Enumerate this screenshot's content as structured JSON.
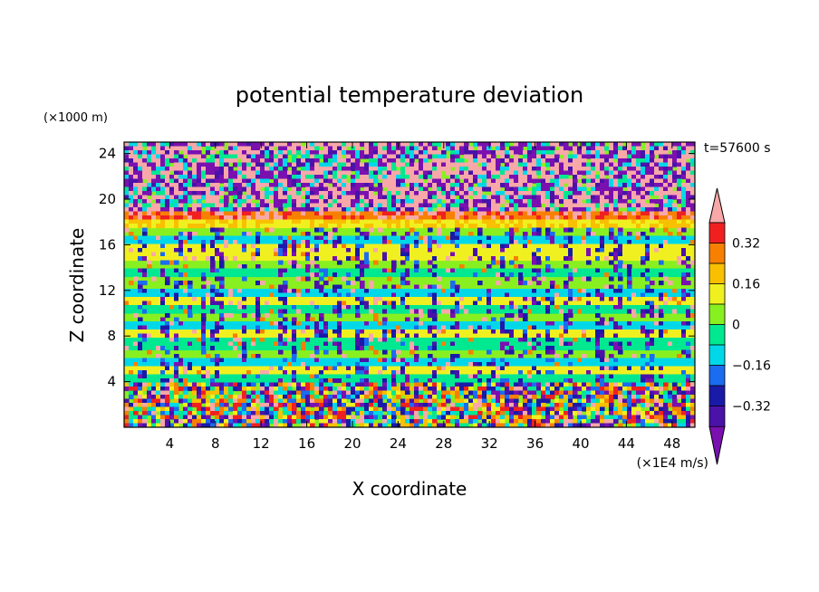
{
  "chart_data": {
    "type": "heatmap",
    "title": "potential temperature deviation",
    "time_label": "t=57600 s",
    "xlabel": "X coordinate",
    "ylabel": "Z coordinate",
    "x_unit": "(×1E4 m/s)",
    "y_unit": "(×1000 m)",
    "xlim": [
      0,
      50
    ],
    "ylim": [
      0,
      25
    ],
    "x_ticks": [
      4,
      8,
      12,
      16,
      20,
      24,
      28,
      32,
      36,
      40,
      44,
      48
    ],
    "y_ticks": [
      4,
      8,
      12,
      16,
      20,
      24
    ],
    "colorbar": {
      "levels": [
        -0.4,
        -0.32,
        -0.24,
        -0.16,
        -0.08,
        0,
        0.08,
        0.16,
        0.24,
        0.32,
        0.4
      ],
      "tick_labels": [
        "0.32",
        "0.16",
        "0",
        "−0.16",
        "−0.32"
      ],
      "tick_values": [
        0.32,
        0.16,
        0,
        -0.16,
        -0.32
      ],
      "colors": [
        "#7a10b0",
        "#4a12a8",
        "#1a1aa8",
        "#1a6cf0",
        "#00d8e8",
        "#00e890",
        "#88f020",
        "#f0f020",
        "#f8c000",
        "#f88000",
        "#f02020",
        "#f8a8a8"
      ],
      "extend": "both"
    },
    "regions": [
      {
        "name": "upper layer",
        "z_range": [
          19,
          25
        ],
        "dominant": "mixed pink / purple"
      },
      {
        "name": "tropopause band",
        "z_range": [
          17.5,
          19
        ],
        "dominant": "orange / red"
      },
      {
        "name": "stratified interior",
        "z_range": [
          4,
          17.5
        ],
        "dominant": "green / cyan / yellow with purple plumes"
      },
      {
        "name": "boundary layer",
        "z_range": [
          0,
          4
        ],
        "dominant": "noisy multicolor"
      }
    ]
  }
}
